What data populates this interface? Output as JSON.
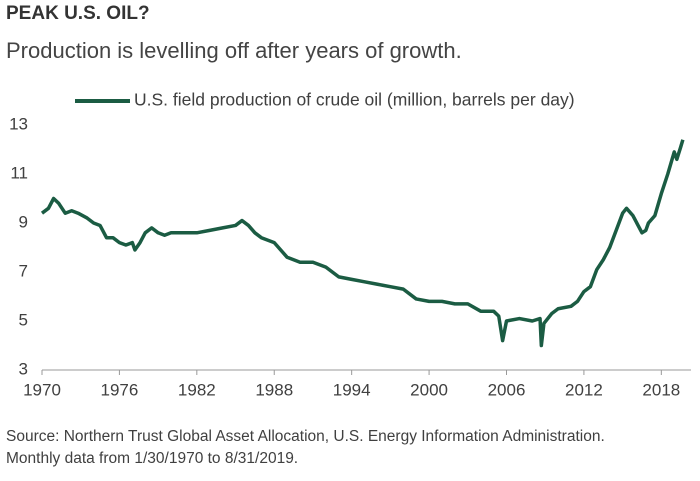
{
  "chart_data": {
    "type": "line",
    "title": "PEAK U.S. OIL?",
    "subtitle": "Production is levelling off after years of growth.",
    "source": "Source: Northern Trust Global Asset Allocation, U.S. Energy Information Administration. Monthly data from 1/30/1970 to 8/31/2019.",
    "x": [
      1970.0,
      1970.5,
      1970.9,
      1971.3,
      1971.8,
      1972.3,
      1972.8,
      1973.5,
      1974,
      1974.5,
      1975,
      1975.5,
      1976,
      1976.5,
      1977,
      1977.2,
      1977.6,
      1978,
      1978.5,
      1979,
      1979.5,
      1980,
      1981,
      1982,
      1983,
      1984,
      1985,
      1985.5,
      1986,
      1986.5,
      1987,
      1988,
      1989,
      1990,
      1991,
      1992,
      1993,
      1994,
      1995,
      1996,
      1997,
      1998,
      1999,
      2000,
      2001,
      2002,
      2003,
      2004,
      2005,
      2005.4,
      2005.7,
      2006,
      2007,
      2008,
      2008.6,
      2008.7,
      2008.9,
      2009.5,
      2010,
      2011,
      2011.5,
      2012,
      2012.5,
      2013,
      2013.5,
      2014,
      2014.5,
      2015,
      2015.3,
      2015.8,
      2016,
      2016.5,
      2016.8,
      2017,
      2017.5,
      2018,
      2018.5,
      2019,
      2019.2,
      2019.5,
      2019.67
    ],
    "series": [
      {
        "name": "U.S. field production of crude oil (million, barrels per day)",
        "color": "#1b5c43",
        "values": [
          9.4,
          9.6,
          10.0,
          9.8,
          9.4,
          9.5,
          9.4,
          9.2,
          9.0,
          8.9,
          8.4,
          8.4,
          8.2,
          8.1,
          8.2,
          7.9,
          8.2,
          8.6,
          8.8,
          8.6,
          8.5,
          8.6,
          8.6,
          8.6,
          8.7,
          8.8,
          8.9,
          9.1,
          8.9,
          8.6,
          8.4,
          8.2,
          7.6,
          7.4,
          7.4,
          7.2,
          6.8,
          6.7,
          6.6,
          6.5,
          6.4,
          6.3,
          5.9,
          5.8,
          5.8,
          5.7,
          5.7,
          5.4,
          5.4,
          5.2,
          4.2,
          5.0,
          5.1,
          5.0,
          5.1,
          4.0,
          4.9,
          5.3,
          5.5,
          5.6,
          5.8,
          6.2,
          6.4,
          7.1,
          7.5,
          8.0,
          8.7,
          9.4,
          9.6,
          9.3,
          9.1,
          8.6,
          8.7,
          9.0,
          9.3,
          10.2,
          11.0,
          11.9,
          11.6,
          12.1,
          12.4
        ]
      }
    ],
    "xlim": [
      1970,
      2020.3
    ],
    "xticks": [
      1970,
      1976,
      1982,
      1988,
      1994,
      2000,
      2006,
      2012,
      2018
    ],
    "ylim": [
      3,
      13
    ],
    "yticks": [
      3,
      5,
      7,
      9,
      11,
      13
    ],
    "grid": false,
    "legend": "top"
  }
}
